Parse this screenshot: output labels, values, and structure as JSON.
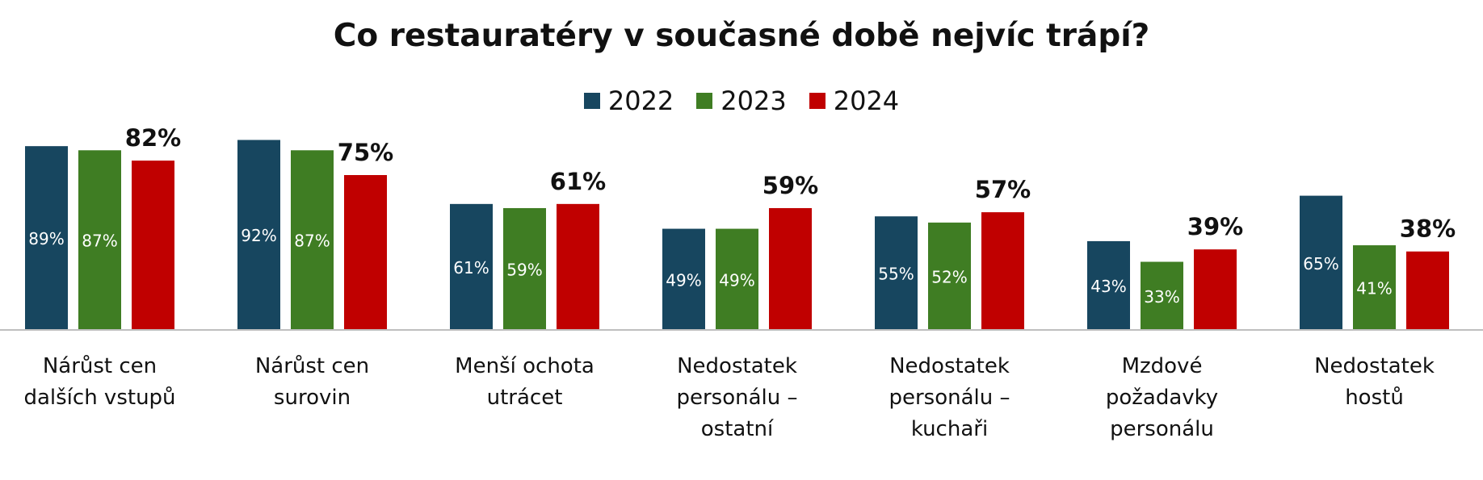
{
  "chart_data": {
    "type": "bar",
    "title": "Co restauratéry v současné době nejvíc trápí?",
    "xlabel": "",
    "ylabel": "",
    "ylim": [
      0,
      100
    ],
    "grid": false,
    "legend_position": "top",
    "categories": [
      [
        "Nárůst cen",
        "dalších vstupů"
      ],
      [
        "Nárůst cen",
        "surovin"
      ],
      [
        "Menší ochota",
        "utrácet"
      ],
      [
        "Nedostatek",
        "personálu –",
        "ostatní"
      ],
      [
        "Nedostatek",
        "personálu –",
        "kuchaři"
      ],
      [
        "Mzdové",
        "požadavky",
        "personálu"
      ],
      [
        "Nedostatek",
        "hostů"
      ]
    ],
    "series": [
      {
        "name": "2022",
        "color": "#17465f",
        "values": [
          89,
          92,
          61,
          49,
          55,
          43,
          65
        ],
        "labels": [
          "89%",
          "92%",
          "61%",
          "49%",
          "55%",
          "43%",
          "65%"
        ]
      },
      {
        "name": "2023",
        "color": "#3f7d23",
        "values": [
          87,
          87,
          59,
          49,
          52,
          33,
          41
        ],
        "labels": [
          "87%",
          "87%",
          "59%",
          "49%",
          "52%",
          "33%",
          "41%"
        ]
      },
      {
        "name": "2024",
        "color": "#c00000",
        "values": [
          82,
          75,
          61,
          59,
          57,
          39,
          38
        ],
        "labels": [
          "82%",
          "75%",
          "61%",
          "59%",
          "57%",
          "39%",
          "38%"
        ]
      }
    ]
  }
}
